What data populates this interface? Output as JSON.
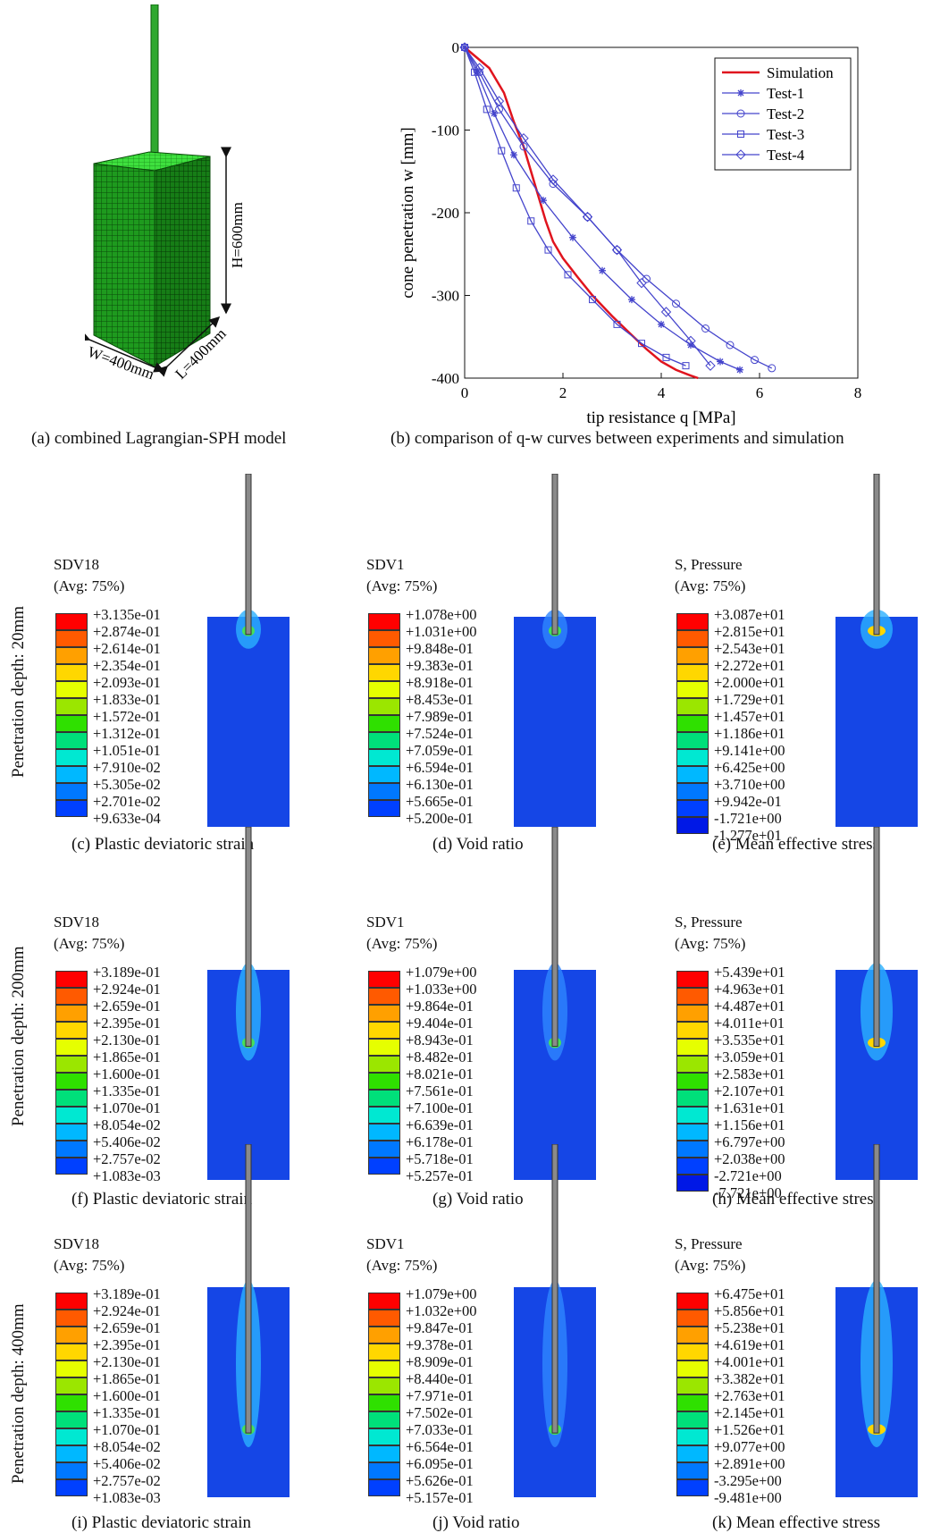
{
  "top": {
    "caption_a": "(a) combined Lagrangian-SPH model",
    "caption_b": "(b) comparison of q-w curves between experiments and simulation",
    "dim_h": "H=600mm",
    "dim_w": "W=400mm",
    "dim_l": "L=400mm"
  },
  "chart_data": {
    "type": "line",
    "xlabel": "tip resistance q [MPa]",
    "ylabel": "cone penetration w [mm]",
    "xlim": [
      0,
      8
    ],
    "ylim": [
      -400,
      0
    ],
    "xticks": [
      "0",
      "2",
      "4",
      "6",
      "8"
    ],
    "yticks": [
      "0",
      "-100",
      "-200",
      "-300",
      "-400"
    ],
    "legend_position": "top-right",
    "series": [
      {
        "name": "Simulation",
        "color": "#e0141e",
        "marker": "none",
        "x": [
          0,
          0.2,
          0.5,
          0.8,
          1.0,
          1.2,
          1.35,
          1.5,
          1.65,
          1.8,
          2.0,
          2.3,
          2.6,
          3.0,
          3.4,
          3.7,
          4.0,
          4.3,
          4.6,
          4.75
        ],
        "y": [
          0,
          -10,
          -25,
          -55,
          -90,
          -120,
          -150,
          -180,
          -210,
          -235,
          -255,
          -278,
          -300,
          -325,
          -348,
          -365,
          -380,
          -390,
          -397,
          -400
        ]
      },
      {
        "name": "Test-1",
        "color": "#4444cc",
        "marker": "star",
        "x": [
          0,
          0.25,
          0.6,
          1.0,
          1.6,
          2.2,
          2.8,
          3.4,
          4.0,
          4.6,
          5.2,
          5.6
        ],
        "y": [
          0,
          -30,
          -80,
          -130,
          -185,
          -230,
          -270,
          -305,
          -335,
          -360,
          -380,
          -390
        ]
      },
      {
        "name": "Test-2",
        "color": "#4444cc",
        "marker": "circle",
        "x": [
          0,
          0.3,
          0.7,
          1.2,
          1.8,
          2.5,
          3.1,
          3.7,
          4.3,
          4.9,
          5.4,
          5.9,
          6.25
        ],
        "y": [
          0,
          -30,
          -75,
          -120,
          -165,
          -205,
          -245,
          -280,
          -310,
          -340,
          -360,
          -378,
          -388
        ]
      },
      {
        "name": "Test-3",
        "color": "#4444cc",
        "marker": "square",
        "x": [
          0,
          0.2,
          0.45,
          0.75,
          1.05,
          1.35,
          1.7,
          2.1,
          2.6,
          3.1,
          3.6,
          4.1,
          4.5
        ],
        "y": [
          0,
          -30,
          -75,
          -125,
          -170,
          -210,
          -245,
          -275,
          -305,
          -335,
          -358,
          -375,
          -385
        ]
      },
      {
        "name": "Test-4",
        "color": "#4444cc",
        "marker": "diamond",
        "x": [
          0,
          0.3,
          0.7,
          1.2,
          1.8,
          2.5,
          3.1,
          3.6,
          4.1,
          4.6,
          5.0
        ],
        "y": [
          0,
          -25,
          -65,
          -110,
          -160,
          -205,
          -245,
          -285,
          -320,
          -355,
          -385
        ]
      }
    ]
  },
  "row_labels": [
    "Penetration depth: 20mm",
    "Penetration depth: 200mm",
    "Penetration depth: 400mm"
  ],
  "legend_colors": [
    "#ff0000",
    "#ff5a00",
    "#ffa000",
    "#ffd700",
    "#e6ff00",
    "#9be600",
    "#2fe000",
    "#00e07a",
    "#00e8d2",
    "#00b8ff",
    "#0078ff",
    "#0040ff",
    "#0018e6"
  ],
  "panels": [
    {
      "caption": "(c) Plastic deviatoric strain",
      "title1": "SDV18",
      "title2": "(Avg: 75%)",
      "kind": "strain",
      "depth": 0.05,
      "values": [
        "+3.135e-01",
        "+2.874e-01",
        "+2.614e-01",
        "+2.354e-01",
        "+2.093e-01",
        "+1.833e-01",
        "+1.572e-01",
        "+1.312e-01",
        "+1.051e-01",
        "+7.910e-02",
        "+5.305e-02",
        "+2.701e-02",
        "+9.633e-04"
      ]
    },
    {
      "caption": "(d) Void ratio",
      "title1": "SDV1",
      "title2": "(Avg: 75%)",
      "kind": "void",
      "depth": 0.05,
      "values": [
        "+1.078e+00",
        "+1.031e+00",
        "+9.848e-01",
        "+9.383e-01",
        "+8.918e-01",
        "+8.453e-01",
        "+7.989e-01",
        "+7.524e-01",
        "+7.059e-01",
        "+6.594e-01",
        "+6.130e-01",
        "+5.665e-01",
        "+5.200e-01"
      ]
    },
    {
      "caption": "(e) Mean effective stress",
      "title1": "S, Pressure",
      "title2": "(Avg: 75%)",
      "kind": "stress",
      "depth": 0.05,
      "values": [
        "+3.087e+01",
        "+2.815e+01",
        "+2.543e+01",
        "+2.272e+01",
        "+2.000e+01",
        "+1.729e+01",
        "+1.457e+01",
        "+1.186e+01",
        "+9.141e+00",
        "+6.425e+00",
        "+3.710e+00",
        "+9.942e-01",
        "-1.721e+00",
        "-1.277e+01"
      ]
    },
    {
      "caption": "(f) Plastic deviatoric strain",
      "title1": "SDV18",
      "title2": "(Avg: 75%)",
      "kind": "strain",
      "depth": 0.33,
      "values": [
        "+3.189e-01",
        "+2.924e-01",
        "+2.659e-01",
        "+2.395e-01",
        "+2.130e-01",
        "+1.865e-01",
        "+1.600e-01",
        "+1.335e-01",
        "+1.070e-01",
        "+8.054e-02",
        "+5.406e-02",
        "+2.757e-02",
        "+1.083e-03"
      ]
    },
    {
      "caption": "(g) Void ratio",
      "title1": "SDV1",
      "title2": "(Avg: 75%)",
      "kind": "void",
      "depth": 0.33,
      "values": [
        "+1.079e+00",
        "+1.033e+00",
        "+9.864e-01",
        "+9.404e-01",
        "+8.943e-01",
        "+8.482e-01",
        "+8.021e-01",
        "+7.561e-01",
        "+7.100e-01",
        "+6.639e-01",
        "+6.178e-01",
        "+5.718e-01",
        "+5.257e-01"
      ]
    },
    {
      "caption": "(h) Mean effective stress",
      "title1": "S, Pressure",
      "title2": "(Avg: 75%)",
      "kind": "stress",
      "depth": 0.33,
      "values": [
        "+5.439e+01",
        "+4.963e+01",
        "+4.487e+01",
        "+4.011e+01",
        "+3.535e+01",
        "+3.059e+01",
        "+2.583e+01",
        "+2.107e+01",
        "+1.631e+01",
        "+1.156e+01",
        "+6.797e+00",
        "+2.038e+00",
        "-2.721e+00",
        "-7.721e+00"
      ]
    },
    {
      "caption": "(i) Plastic deviatoric strain",
      "title1": "SDV18",
      "title2": "(Avg: 75%)",
      "kind": "strain",
      "depth": 0.66,
      "values": [
        "+3.189e-01",
        "+2.924e-01",
        "+2.659e-01",
        "+2.395e-01",
        "+2.130e-01",
        "+1.865e-01",
        "+1.600e-01",
        "+1.335e-01",
        "+1.070e-01",
        "+8.054e-02",
        "+5.406e-02",
        "+2.757e-02",
        "+1.083e-03"
      ]
    },
    {
      "caption": "(j) Void ratio",
      "title1": "SDV1",
      "title2": "(Avg: 75%)",
      "kind": "void",
      "depth": 0.66,
      "values": [
        "+1.079e+00",
        "+1.032e+00",
        "+9.847e-01",
        "+9.378e-01",
        "+8.909e-01",
        "+8.440e-01",
        "+7.971e-01",
        "+7.502e-01",
        "+7.033e-01",
        "+6.564e-01",
        "+6.095e-01",
        "+5.626e-01",
        "+5.157e-01"
      ]
    },
    {
      "caption": "(k) Mean effective stress",
      "title1": "S, Pressure",
      "title2": "(Avg: 75%)",
      "kind": "stress",
      "depth": 0.66,
      "values": [
        "+6.475e+01",
        "+5.856e+01",
        "+5.238e+01",
        "+4.619e+01",
        "+4.001e+01",
        "+3.382e+01",
        "+2.763e+01",
        "+2.145e+01",
        "+1.526e+01",
        "+9.077e+00",
        "+2.891e+00",
        "-3.295e+00",
        "-9.481e+00"
      ]
    }
  ]
}
